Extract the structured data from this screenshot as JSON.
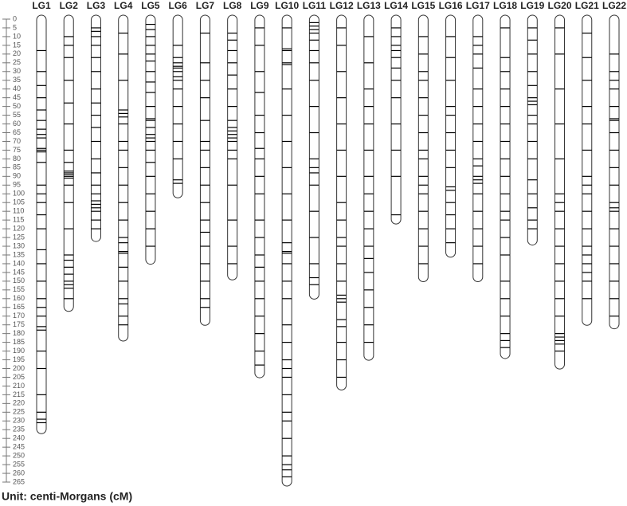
{
  "chart_data": {
    "type": "linkage-map",
    "ylim": [
      0,
      265
    ],
    "yticks": [
      0,
      5,
      10,
      15,
      20,
      25,
      30,
      35,
      40,
      45,
      50,
      55,
      60,
      65,
      70,
      75,
      80,
      85,
      90,
      95,
      100,
      105,
      110,
      115,
      120,
      125,
      130,
      135,
      140,
      145,
      150,
      155,
      160,
      165,
      170,
      175,
      180,
      185,
      190,
      195,
      200,
      205,
      210,
      215,
      220,
      225,
      230,
      235,
      240,
      245,
      250,
      255,
      260,
      265
    ],
    "note": "Unit: centi-Morgans (cM)",
    "marker_color": "#000000",
    "groups": [
      {
        "name": "LG1",
        "length": 235,
        "markers": [
          18,
          30,
          38,
          45,
          52,
          58,
          63,
          66,
          68,
          74,
          75,
          76,
          82,
          95,
          100,
          105,
          112,
          120,
          132,
          140,
          150,
          160,
          165,
          170,
          176,
          178,
          190,
          200,
          215,
          225,
          229,
          231
        ]
      },
      {
        "name": "LG2",
        "length": 165,
        "markers": [
          10,
          15,
          22,
          35,
          48,
          60,
          75,
          82,
          87,
          88,
          89,
          90,
          91,
          95,
          105,
          120,
          135,
          138,
          142,
          146,
          150,
          152,
          154,
          160
        ]
      },
      {
        "name": "LG3",
        "length": 125,
        "markers": [
          5,
          7,
          10,
          15,
          22,
          30,
          40,
          48,
          55,
          62,
          70,
          80,
          88,
          95,
          100,
          104,
          106,
          108,
          110,
          115,
          120
        ]
      },
      {
        "name": "LG4",
        "length": 182,
        "markers": [
          8,
          20,
          35,
          52,
          54,
          56,
          60,
          70,
          75,
          85,
          95,
          105,
          115,
          125,
          128,
          133,
          134,
          142,
          150,
          160,
          163,
          170,
          175
        ]
      },
      {
        "name": "LG5",
        "length": 138,
        "markers": [
          3,
          6,
          10,
          15,
          20,
          24,
          30,
          36,
          42,
          50,
          57,
          58,
          62,
          66,
          68,
          70,
          75,
          82,
          90,
          100,
          110,
          120,
          130
        ]
      },
      {
        "name": "LG6",
        "length": 100,
        "markers": [
          15,
          22,
          25,
          27,
          28,
          30,
          33,
          35,
          40,
          50,
          60,
          70,
          80,
          92,
          94
        ]
      },
      {
        "name": "LG7",
        "length": 173,
        "markers": [
          8,
          25,
          35,
          45,
          58,
          70,
          75,
          85,
          95,
          105,
          115,
          122,
          130,
          140,
          150,
          160,
          165
        ]
      },
      {
        "name": "LG8",
        "length": 147,
        "markers": [
          8,
          12,
          18,
          25,
          32,
          40,
          50,
          58,
          62,
          64,
          66,
          68,
          70,
          75,
          80,
          95,
          115,
          130,
          140
        ]
      },
      {
        "name": "LG9",
        "length": 203,
        "markers": [
          5,
          15,
          30,
          42,
          55,
          65,
          74,
          80,
          90,
          100,
          115,
          125,
          135,
          142,
          150,
          160,
          170,
          180,
          190,
          198
        ]
      },
      {
        "name": "LG10",
        "length": 265,
        "markers": [
          5,
          17,
          18,
          25,
          26,
          40,
          55,
          70,
          85,
          100,
          115,
          128,
          133,
          134,
          140,
          150,
          160,
          175,
          185,
          195,
          200,
          205,
          215,
          225,
          230,
          240,
          250,
          255,
          258,
          262
        ]
      },
      {
        "name": "LG11",
        "length": 158,
        "markers": [
          2,
          4,
          6,
          8,
          12,
          18,
          25,
          35,
          50,
          65,
          80,
          85,
          88,
          95,
          110,
          125,
          140,
          148,
          152
        ]
      },
      {
        "name": "LG12",
        "length": 210,
        "markers": [
          5,
          15,
          30,
          45,
          60,
          75,
          90,
          105,
          115,
          125,
          130,
          140,
          150,
          158,
          160,
          162,
          172,
          176,
          185,
          195,
          205
        ]
      },
      {
        "name": "LG13",
        "length": 193,
        "markers": [
          10,
          25,
          40,
          50,
          60,
          75,
          90,
          100,
          110,
          120,
          130,
          137,
          145,
          155,
          165,
          175,
          185
        ]
      },
      {
        "name": "LG14",
        "length": 115,
        "markers": [
          5,
          10,
          15,
          18,
          22,
          28,
          35,
          45,
          60,
          75,
          90,
          112
        ]
      },
      {
        "name": "LG15",
        "length": 148,
        "markers": [
          10,
          20,
          30,
          35,
          45,
          55,
          65,
          75,
          80,
          90,
          95,
          100,
          110,
          120,
          130,
          140
        ]
      },
      {
        "name": "LG16",
        "length": 134,
        "markers": [
          10,
          22,
          35,
          50,
          55,
          65,
          75,
          85,
          96,
          98,
          105,
          112,
          120,
          128
        ]
      },
      {
        "name": "LG17",
        "length": 148,
        "markers": [
          10,
          15,
          20,
          28,
          40,
          50,
          60,
          70,
          80,
          84,
          90,
          92,
          94,
          100,
          110,
          120,
          130,
          140
        ]
      },
      {
        "name": "LG18",
        "length": 192,
        "markers": [
          5,
          22,
          30,
          40,
          50,
          60,
          70,
          80,
          90,
          100,
          110,
          115,
          125,
          135,
          150,
          160,
          170,
          180,
          184,
          188
        ]
      },
      {
        "name": "LG19",
        "length": 127,
        "markers": [
          5,
          12,
          20,
          30,
          38,
          45,
          47,
          49,
          55,
          60,
          70,
          80,
          92,
          100,
          108,
          115,
          120
        ]
      },
      {
        "name": "LG20",
        "length": 198,
        "markers": [
          5,
          20,
          40,
          60,
          80,
          100,
          105,
          110,
          120,
          130,
          140,
          150,
          160,
          170,
          180,
          182,
          184,
          186,
          190
        ]
      },
      {
        "name": "LG21",
        "length": 173,
        "markers": [
          8,
          22,
          35,
          50,
          60,
          75,
          90,
          95,
          100,
          110,
          120,
          130,
          135,
          140,
          145,
          150,
          160
        ]
      },
      {
        "name": "LG22",
        "length": 175,
        "markers": [
          20,
          30,
          35,
          40,
          50,
          57,
          58,
          65,
          75,
          85,
          95,
          105,
          108,
          110,
          120,
          130,
          140,
          150,
          160,
          170
        ]
      }
    ]
  }
}
